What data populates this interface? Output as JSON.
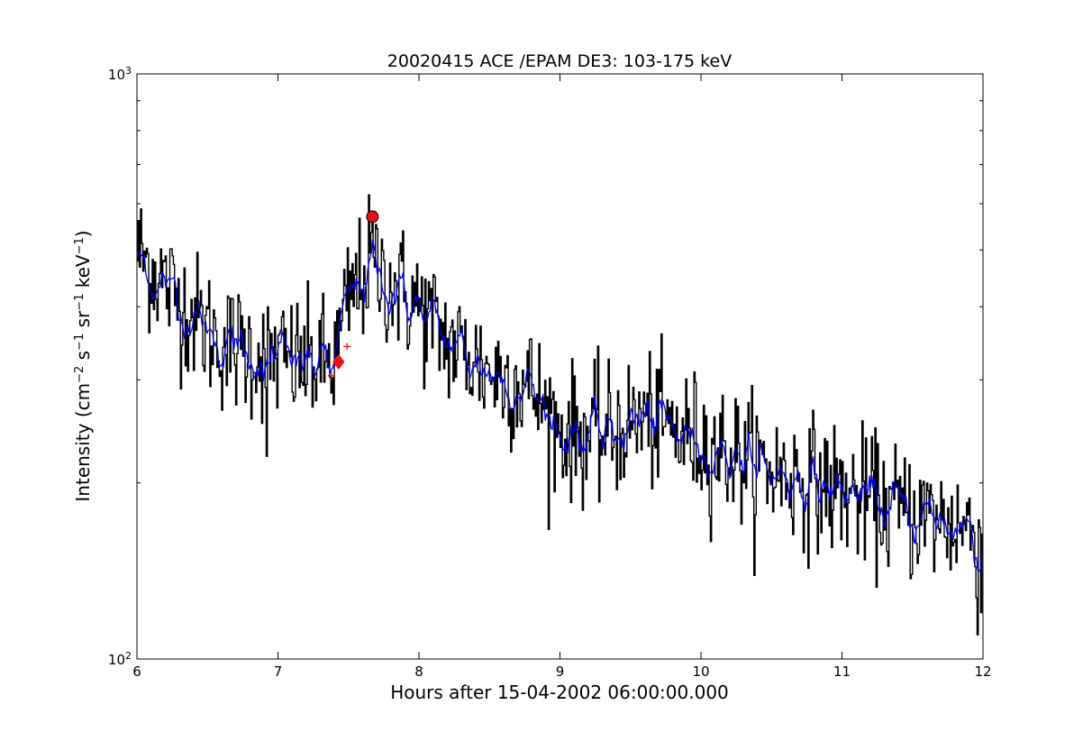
{
  "chart_data": {
    "type": "line",
    "title": "20020415 ACE /EPAM DE3: 103-175 keV",
    "xlabel": "Hours after 15-04-2002 06:00:00.000",
    "ylabel": {
      "base": "Intensity (cm",
      "exp1": "−2",
      "mid1": " s",
      "exp2": "−1",
      "mid2": " sr",
      "exp3": "−1",
      "mid3": " keV",
      "exp4": "−1",
      "end": ")"
    },
    "xlim": [
      6,
      12
    ],
    "ylim": [
      100,
      1000
    ],
    "yscale": "log",
    "grid": false,
    "x_ticks": [
      "6",
      "7",
      "8",
      "9",
      "10",
      "11",
      "12"
    ],
    "y_ticks": [
      {
        "base": "10",
        "exp": "2",
        "value": 100
      },
      {
        "base": "10",
        "exp": "3",
        "value": 1000
      }
    ],
    "series": [
      {
        "kind": "raw-step",
        "color": "#000000",
        "anchors": [
          [
            6.0,
            500
          ],
          [
            6.3,
            410
          ],
          [
            6.6,
            345
          ],
          [
            6.9,
            330
          ],
          [
            7.2,
            320
          ],
          [
            7.4,
            320
          ],
          [
            7.5,
            410
          ],
          [
            7.65,
            470
          ],
          [
            7.75,
            450
          ],
          [
            8.0,
            400
          ],
          [
            8.2,
            350
          ],
          [
            8.5,
            310
          ],
          [
            8.8,
            290
          ],
          [
            9.0,
            245
          ],
          [
            9.3,
            240
          ],
          [
            9.6,
            258
          ],
          [
            9.9,
            240
          ],
          [
            10.2,
            225
          ],
          [
            10.5,
            210
          ],
          [
            10.8,
            200
          ],
          [
            11.1,
            190
          ],
          [
            11.4,
            180
          ],
          [
            11.7,
            172
          ],
          [
            12.0,
            165
          ]
        ]
      },
      {
        "kind": "smoothed",
        "color": "#0000ff",
        "anchors": [
          [
            6.0,
            480
          ],
          [
            6.3,
            410
          ],
          [
            6.6,
            345
          ],
          [
            6.9,
            330
          ],
          [
            7.2,
            320
          ],
          [
            7.4,
            320
          ],
          [
            7.5,
            410
          ],
          [
            7.65,
            460
          ],
          [
            7.75,
            445
          ],
          [
            8.0,
            395
          ],
          [
            8.2,
            350
          ],
          [
            8.5,
            310
          ],
          [
            8.8,
            290
          ],
          [
            9.0,
            245
          ],
          [
            9.3,
            240
          ],
          [
            9.6,
            258
          ],
          [
            9.9,
            240
          ],
          [
            10.2,
            225
          ],
          [
            10.5,
            210
          ],
          [
            10.8,
            200
          ],
          [
            11.1,
            190
          ],
          [
            11.4,
            180
          ],
          [
            11.7,
            172
          ],
          [
            12.0,
            165
          ]
        ]
      }
    ],
    "markers": [
      {
        "shape": "circle",
        "x": 7.67,
        "y": 570,
        "color": "#ee1111"
      },
      {
        "shape": "diamond",
        "x": 7.43,
        "y": 322,
        "color": "#ee1111"
      },
      {
        "shape": "plus",
        "x": 7.38,
        "y": 305,
        "color": "#ee1111"
      },
      {
        "shape": "plus",
        "x": 7.49,
        "y": 342,
        "color": "#ee1111"
      }
    ]
  }
}
